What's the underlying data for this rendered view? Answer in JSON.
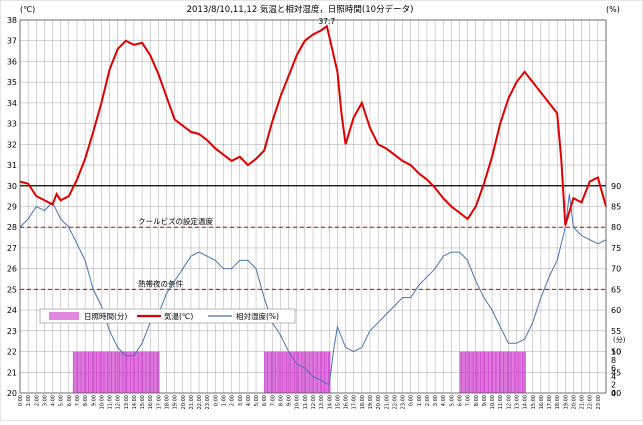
{
  "chart_data": {
    "type": "line",
    "title": "2013/8/10,11,12 気温と相対湿度，日照時間(10分データ)",
    "ylabel_left": "(℃)",
    "ylabel_right": "(%)",
    "ylabel_right_sun": "(分)",
    "ylim_left": [
      20,
      38
    ],
    "ylim_right_humidity": [
      40,
      90
    ],
    "ylim_right_sun": [
      0,
      10
    ],
    "y_ticks_left": [
      20,
      21,
      22,
      23,
      24,
      25,
      26,
      27,
      28,
      29,
      30,
      31,
      32,
      33,
      34,
      35,
      36,
      37,
      38
    ],
    "y_ticks_right_humidity": [
      40,
      45,
      50,
      55,
      60,
      65,
      70,
      75,
      80,
      85,
      90
    ],
    "y_ticks_right_sun": [
      0,
      2,
      4,
      6,
      8,
      10
    ],
    "x_tick_labels": [
      "0:00",
      "1:00",
      "2:00",
      "3:00",
      "4:00",
      "5:00",
      "6:00",
      "7:00",
      "8:00",
      "9:00",
      "10:00",
      "11:00",
      "12:00",
      "13:00",
      "14:00",
      "15:00",
      "16:00",
      "17:00",
      "18:00",
      "19:00",
      "20:00",
      "21:00",
      "22:00",
      "23:00",
      "0:00",
      "1:00",
      "2:00",
      "3:00",
      "4:00",
      "5:00",
      "6:00",
      "7:00",
      "8:00",
      "9:00",
      "10:00",
      "11:00",
      "12:00",
      "13:00",
      "14:00",
      "15:00",
      "16:00",
      "17:00",
      "18:00",
      "19:00",
      "20:00",
      "21:00",
      "22:00",
      "23:00",
      "0:00",
      "1:00",
      "2:00",
      "3:00",
      "4:00",
      "5:00",
      "6:00",
      "7:00",
      "8:00",
      "9:00",
      "10:00",
      "11:00",
      "12:00",
      "13:00",
      "14:00",
      "15:00",
      "16:00",
      "17:00",
      "18:00",
      "19:00",
      "20:00",
      "21:00",
      "22:00",
      "23:00"
    ],
    "reference_lines": [
      {
        "value": 30,
        "color": "#000000",
        "style": "solid"
      },
      {
        "value": 28,
        "color": "#cc0000",
        "style": "dashed",
        "label": "クールビズの設定温度"
      },
      {
        "value": 25,
        "color": "#cc0000",
        "style": "dashed",
        "label": "熱帯夜の条件"
      }
    ],
    "max_annotation": {
      "hour": 37.7,
      "value": 37.7,
      "label": "37.7"
    },
    "legend": {
      "position": "middle-left",
      "items": [
        {
          "label": "日照時間(分)",
          "color": "#cc33cc",
          "kind": "bar"
        },
        {
          "label": "気温(℃)",
          "color": "#e00000",
          "kind": "line"
        },
        {
          "label": "相対湿度(%)",
          "color": "#4a72b0",
          "kind": "line"
        }
      ]
    },
    "series": [
      {
        "name": "気温(℃)",
        "axis": "left",
        "color": "#e00000",
        "points": [
          [
            0,
            30.2
          ],
          [
            1,
            30.1
          ],
          [
            2,
            29.5
          ],
          [
            3,
            29.3
          ],
          [
            4,
            29.1
          ],
          [
            4.5,
            29.6
          ],
          [
            5,
            29.3
          ],
          [
            6,
            29.5
          ],
          [
            7,
            30.3
          ],
          [
            8,
            31.3
          ],
          [
            9,
            32.6
          ],
          [
            10,
            34.0
          ],
          [
            11,
            35.6
          ],
          [
            12,
            36.6
          ],
          [
            13,
            37.0
          ],
          [
            14,
            36.8
          ],
          [
            15,
            36.9
          ],
          [
            16,
            36.3
          ],
          [
            17,
            35.4
          ],
          [
            18,
            34.3
          ],
          [
            19,
            33.2
          ],
          [
            20,
            32.9
          ],
          [
            21,
            32.6
          ],
          [
            22,
            32.5
          ],
          [
            23,
            32.2
          ],
          [
            24,
            31.8
          ],
          [
            25,
            31.5
          ],
          [
            26,
            31.2
          ],
          [
            27,
            31.4
          ],
          [
            28,
            31.0
          ],
          [
            29,
            31.3
          ],
          [
            30,
            31.7
          ],
          [
            31,
            33.1
          ],
          [
            32,
            34.3
          ],
          [
            33,
            35.3
          ],
          [
            34,
            36.3
          ],
          [
            35,
            37.0
          ],
          [
            36,
            37.3
          ],
          [
            37,
            37.5
          ],
          [
            37.7,
            37.7
          ],
          [
            38,
            37.2
          ],
          [
            39,
            35.5
          ],
          [
            39.5,
            33.5
          ],
          [
            40,
            32.0
          ],
          [
            41,
            33.3
          ],
          [
            42,
            34.0
          ],
          [
            43,
            32.8
          ],
          [
            44,
            32.0
          ],
          [
            45,
            31.8
          ],
          [
            46,
            31.5
          ],
          [
            47,
            31.2
          ],
          [
            48,
            31.0
          ],
          [
            49,
            30.6
          ],
          [
            50,
            30.3
          ],
          [
            51,
            29.9
          ],
          [
            52,
            29.4
          ],
          [
            53,
            29.0
          ],
          [
            54,
            28.7
          ],
          [
            55,
            28.4
          ],
          [
            56,
            29.0
          ],
          [
            57,
            30.1
          ],
          [
            58,
            31.4
          ],
          [
            59,
            33.0
          ],
          [
            60,
            34.2
          ],
          [
            61,
            35.0
          ],
          [
            62,
            35.5
          ],
          [
            63,
            35.0
          ],
          [
            64,
            34.5
          ],
          [
            65,
            34.0
          ],
          [
            66,
            33.5
          ],
          [
            66.5,
            31.3
          ],
          [
            67,
            28.1
          ],
          [
            68,
            29.4
          ],
          [
            69,
            29.2
          ],
          [
            70,
            30.2
          ],
          [
            71,
            30.4
          ],
          [
            72,
            29.0
          ]
        ]
      },
      {
        "name": "相対湿度(%)",
        "axis": "right",
        "color": "#4a72b0",
        "points": [
          [
            0,
            80
          ],
          [
            1,
            82
          ],
          [
            2,
            85
          ],
          [
            3,
            84
          ],
          [
            4,
            86
          ],
          [
            5,
            82
          ],
          [
            6,
            80
          ],
          [
            7,
            76
          ],
          [
            8,
            72
          ],
          [
            9,
            65
          ],
          [
            10,
            61
          ],
          [
            11,
            55
          ],
          [
            12,
            51
          ],
          [
            13,
            49
          ],
          [
            14,
            49
          ],
          [
            15,
            52
          ],
          [
            16,
            57
          ],
          [
            17,
            59
          ],
          [
            18,
            64
          ],
          [
            19,
            67
          ],
          [
            20,
            70
          ],
          [
            21,
            73
          ],
          [
            22,
            74
          ],
          [
            23,
            73
          ],
          [
            24,
            72
          ],
          [
            25,
            70
          ],
          [
            26,
            70
          ],
          [
            27,
            72
          ],
          [
            28,
            72
          ],
          [
            29,
            70
          ],
          [
            30,
            63
          ],
          [
            31,
            57
          ],
          [
            32,
            54
          ],
          [
            33,
            50
          ],
          [
            34,
            47
          ],
          [
            35,
            46
          ],
          [
            36,
            44
          ],
          [
            37,
            43
          ],
          [
            38,
            42
          ],
          [
            38.5,
            50
          ],
          [
            39,
            56
          ],
          [
            40,
            51
          ],
          [
            41,
            50
          ],
          [
            42,
            51
          ],
          [
            43,
            55
          ],
          [
            44,
            57
          ],
          [
            45,
            59
          ],
          [
            46,
            61
          ],
          [
            47,
            63
          ],
          [
            48,
            63
          ],
          [
            49,
            66
          ],
          [
            50,
            68
          ],
          [
            51,
            70
          ],
          [
            52,
            73
          ],
          [
            53,
            74
          ],
          [
            54,
            74
          ],
          [
            55,
            72
          ],
          [
            56,
            67
          ],
          [
            57,
            63
          ],
          [
            58,
            60
          ],
          [
            59,
            56
          ],
          [
            60,
            52
          ],
          [
            61,
            52
          ],
          [
            62,
            53
          ],
          [
            63,
            57
          ],
          [
            64,
            63
          ],
          [
            65,
            68
          ],
          [
            66,
            72
          ],
          [
            67,
            80
          ],
          [
            67.5,
            88
          ],
          [
            68,
            80
          ],
          [
            69,
            78
          ],
          [
            70,
            77
          ],
          [
            71,
            76
          ],
          [
            72,
            77
          ]
        ]
      },
      {
        "name": "日照時間(分)",
        "axis": "right_sun",
        "color": "#cc33cc",
        "blocks": [
          {
            "from": 6.5,
            "to": 17.0,
            "value": 10
          },
          {
            "from": 30.0,
            "to": 38.0,
            "value": 10
          },
          {
            "from": 54.0,
            "to": 62.0,
            "value": 10
          }
        ]
      }
    ]
  }
}
